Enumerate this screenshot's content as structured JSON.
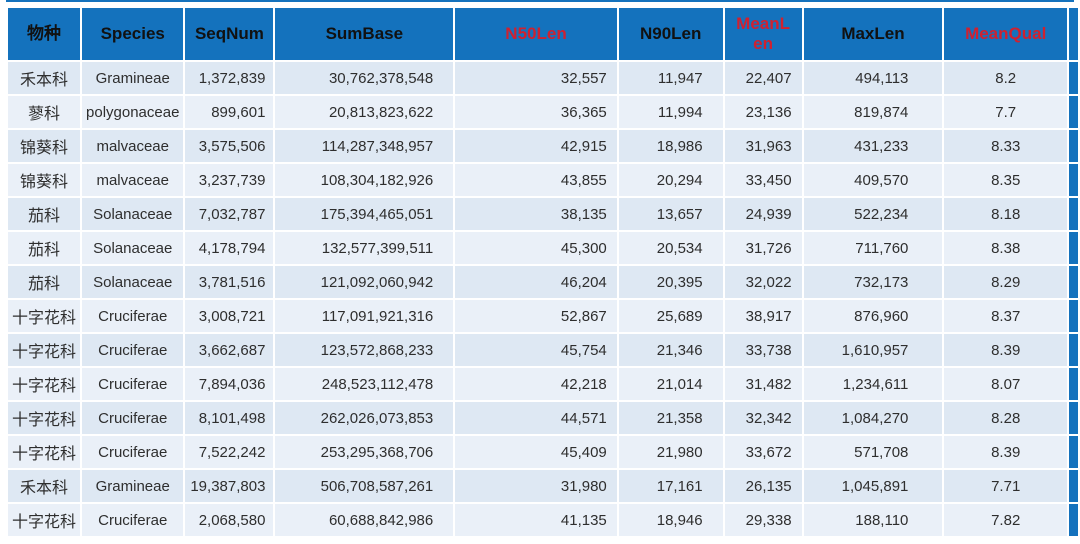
{
  "colors": {
    "header_bg": "#1472bd",
    "header_text": "#111111",
    "header_red_text": "#cf2130",
    "row_band_dark": "#dee8f3",
    "row_band_light": "#eaf0f8",
    "body_text": "#2e2e2e",
    "gridline": "#ffffff"
  },
  "chart_data": {
    "type": "table",
    "columns": [
      {
        "label": "物种",
        "red": false
      },
      {
        "label": "Species",
        "red": false
      },
      {
        "label": "SeqNum",
        "red": false
      },
      {
        "label": "SumBase",
        "red": false
      },
      {
        "label": "N50Len",
        "red": true
      },
      {
        "label": "N90Len",
        "red": false
      },
      {
        "label": "MeanLen",
        "red": true
      },
      {
        "label": "MaxLen",
        "red": false
      },
      {
        "label": "MeanQual",
        "red": true
      }
    ],
    "rows": [
      [
        "禾本科",
        "Gramineae",
        "1,372,839",
        "30,762,378,548",
        "32,557",
        "11,947",
        "22,407",
        "494,113",
        "8.2"
      ],
      [
        "蓼科",
        "polygonaceae",
        "899,601",
        "20,813,823,622",
        "36,365",
        "11,994",
        "23,136",
        "819,874",
        "7.7"
      ],
      [
        "锦葵科",
        "malvaceae",
        "3,575,506",
        "114,287,348,957",
        "42,915",
        "18,986",
        "31,963",
        "431,233",
        "8.33"
      ],
      [
        "锦葵科",
        "malvaceae",
        "3,237,739",
        "108,304,182,926",
        "43,855",
        "20,294",
        "33,450",
        "409,570",
        "8.35"
      ],
      [
        "茄科",
        "Solanaceae",
        "7,032,787",
        "175,394,465,051",
        "38,135",
        "13,657",
        "24,939",
        "522,234",
        "8.18"
      ],
      [
        "茄科",
        "Solanaceae",
        "4,178,794",
        "132,577,399,511",
        "45,300",
        "20,534",
        "31,726",
        "711,760",
        "8.38"
      ],
      [
        "茄科",
        "Solanaceae",
        "3,781,516",
        "121,092,060,942",
        "46,204",
        "20,395",
        "32,022",
        "732,173",
        "8.29"
      ],
      [
        "十字花科",
        "Cruciferae",
        "3,008,721",
        "117,091,921,316",
        "52,867",
        "25,689",
        "38,917",
        "876,960",
        "8.37"
      ],
      [
        "十字花科",
        "Cruciferae",
        "3,662,687",
        "123,572,868,233",
        "45,754",
        "21,346",
        "33,738",
        "1,610,957",
        "8.39"
      ],
      [
        "十字花科",
        "Cruciferae",
        "7,894,036",
        "248,523,112,478",
        "42,218",
        "21,014",
        "31,482",
        "1,234,611",
        "8.07"
      ],
      [
        "十字花科",
        "Cruciferae",
        "8,101,498",
        "262,026,073,853",
        "44,571",
        "21,358",
        "32,342",
        "1,084,270",
        "8.28"
      ],
      [
        "十字花科",
        "Cruciferae",
        "7,522,242",
        "253,295,368,706",
        "45,409",
        "21,980",
        "33,672",
        "571,708",
        "8.39"
      ],
      [
        "禾本科",
        "Gramineae",
        "19,387,803",
        "506,708,587,261",
        "31,980",
        "17,161",
        "26,135",
        "1,045,891",
        "7.71"
      ],
      [
        "十字花科",
        "Cruciferae",
        "2,068,580",
        "60,688,842,986",
        "41,135",
        "18,946",
        "29,338",
        "188,110",
        "7.82"
      ]
    ]
  }
}
